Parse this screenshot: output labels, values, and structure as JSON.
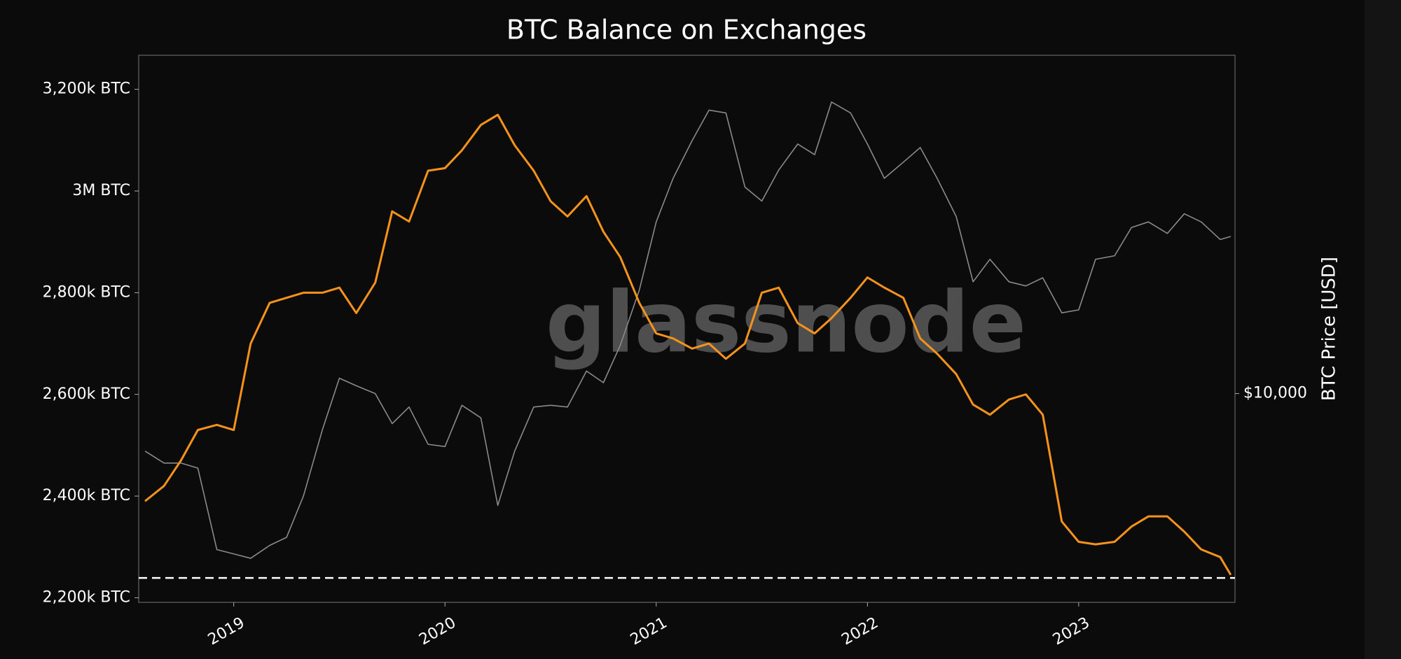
{
  "chart_data": {
    "type": "line",
    "title": "BTC Balance on Exchanges",
    "y2_label": "BTC Price [USD]",
    "watermark": "glassnode",
    "x": [
      2018.58,
      2018.67,
      2018.75,
      2018.83,
      2018.92,
      2019.0,
      2019.08,
      2019.17,
      2019.25,
      2019.33,
      2019.42,
      2019.5,
      2019.58,
      2019.67,
      2019.75,
      2019.83,
      2019.92,
      2020.0,
      2020.08,
      2020.17,
      2020.25,
      2020.33,
      2020.42,
      2020.5,
      2020.58,
      2020.67,
      2020.75,
      2020.83,
      2020.92,
      2021.0,
      2021.08,
      2021.17,
      2021.25,
      2021.33,
      2021.42,
      2021.5,
      2021.58,
      2021.67,
      2021.75,
      2021.83,
      2021.92,
      2022.0,
      2022.08,
      2022.17,
      2022.25,
      2022.33,
      2022.42,
      2022.5,
      2022.58,
      2022.67,
      2022.75,
      2022.83,
      2022.92,
      2023.0,
      2023.08,
      2023.17,
      2023.25,
      2023.33,
      2023.42,
      2023.5,
      2023.58,
      2023.67,
      2023.72
    ],
    "series": [
      {
        "name": "BTC Balance on Exchanges",
        "color": "#f7931a",
        "axis": "y",
        "values": [
          2390000,
          2420000,
          2470000,
          2530000,
          2540000,
          2530000,
          2700000,
          2780000,
          2790000,
          2800000,
          2800000,
          2810000,
          2760000,
          2820000,
          2960000,
          2940000,
          3040000,
          3045000,
          3080000,
          3130000,
          3150000,
          3090000,
          3040000,
          2980000,
          2950000,
          2990000,
          2920000,
          2870000,
          2780000,
          2720000,
          2710000,
          2690000,
          2700000,
          2670000,
          2700000,
          2800000,
          2810000,
          2740000,
          2720000,
          2750000,
          2790000,
          2830000,
          2810000,
          2790000,
          2710000,
          2680000,
          2640000,
          2580000,
          2560000,
          2590000,
          2600000,
          2560000,
          2350000,
          2310000,
          2305000,
          2310000,
          2340000,
          2360000,
          2360000,
          2330000,
          2295000,
          2280000,
          2245000
        ]
      },
      {
        "name": "BTC Price [USD]",
        "color": "#8a8a8a",
        "axis": "y2",
        "values": [
          7000,
          6500,
          6500,
          6300,
          3800,
          3700,
          3600,
          3900,
          4100,
          5300,
          8000,
          11000,
          10500,
          10000,
          8300,
          9200,
          7300,
          7200,
          9300,
          8600,
          5000,
          7000,
          9200,
          9300,
          9200,
          11500,
          10700,
          13500,
          19000,
          29000,
          38000,
          48000,
          58000,
          57000,
          36000,
          33000,
          40000,
          47000,
          44000,
          61000,
          57000,
          47000,
          38000,
          42000,
          46000,
          38000,
          30000,
          20000,
          23000,
          20000,
          19500,
          20500,
          16500,
          16800,
          23000,
          23500,
          28000,
          29000,
          27000,
          30500,
          29000,
          26000,
          26500
        ]
      }
    ],
    "reference_line": 2239000,
    "reference_line_color": "#ffffff",
    "xlim": [
      2018.55,
      2023.74
    ],
    "xticks": [
      2019,
      2020,
      2021,
      2022,
      2023
    ],
    "ylim": [
      2191000,
      3267000
    ],
    "yticks": [
      {
        "value": 2200000,
        "label": "2,200k BTC"
      },
      {
        "value": 2400000,
        "label": "2,400k BTC"
      },
      {
        "value": 2600000,
        "label": "2,600k BTC"
      },
      {
        "value": 2800000,
        "label": "2,800k BTC"
      },
      {
        "value": 3000000,
        "label": "3M BTC"
      },
      {
        "value": 3200000,
        "label": "3,200k BTC"
      }
    ],
    "y2lim": [
      2740,
      81500
    ],
    "y2ticks": [
      {
        "value": 10000,
        "label": "$10,000"
      }
    ],
    "y2log": true,
    "grid": false
  }
}
